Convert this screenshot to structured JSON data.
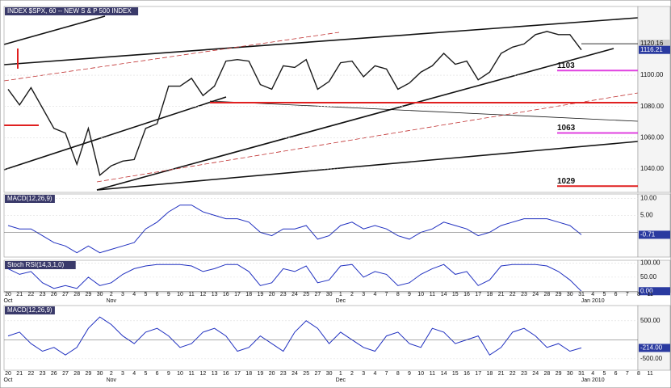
{
  "chart_data": [
    {
      "type": "line",
      "title": "INDEX $SPX, 60 -- NEW S & P 500 INDEX",
      "categories": [
        "20",
        "21",
        "22",
        "23",
        "26",
        "27",
        "28",
        "29",
        "30",
        "2",
        "3",
        "4",
        "5",
        "6",
        "9",
        "10",
        "11",
        "12",
        "13",
        "16",
        "17",
        "18",
        "19",
        "20",
        "23",
        "24",
        "25",
        "27",
        "30",
        "1",
        "2",
        "3",
        "4",
        "7",
        "8",
        "9",
        "10",
        "11",
        "14",
        "15",
        "16",
        "17",
        "18",
        "21",
        "22",
        "23",
        "24",
        "28",
        "29",
        "30",
        "31",
        "4",
        "5",
        "6",
        "7",
        "8",
        "11"
      ],
      "months": [
        {
          "index": 0,
          "label": "Oct"
        },
        {
          "index": 9,
          "label": "Nov"
        },
        {
          "index": 29,
          "label": "Dec"
        },
        {
          "index": 51,
          "label": "Jan 2010"
        }
      ],
      "series": [
        {
          "name": "SPX",
          "color": "#1a1a1a",
          "values": [
            1091,
            1081,
            1092,
            1079,
            1066,
            1063,
            1043,
            1066,
            1036,
            1042,
            1045,
            1046,
            1066,
            1069,
            1093,
            1093,
            1098,
            1087,
            1093,
            1109,
            1110,
            1109,
            1094,
            1091,
            1106,
            1105,
            1110,
            1091,
            1096,
            1108,
            1109,
            1099,
            1106,
            1104,
            1091,
            1095,
            1102,
            1106,
            1114,
            1107,
            1109,
            1097,
            1102,
            1114,
            1118,
            1120,
            1126,
            1128,
            1126,
            1126,
            1116.21,
            null,
            null,
            null,
            null,
            null,
            null
          ],
          "value_label": "1116.21"
        }
      ],
      "levels": [
        {
          "value": 1120.16,
          "label": "1120.16",
          "color": "#333333"
        },
        {
          "value": 1103,
          "label": "1103",
          "color": "#e040e0"
        },
        {
          "value": 1063,
          "label": "1063",
          "color": "#e040e0"
        },
        {
          "value": 1029,
          "label": "1029",
          "color": "#e02020"
        }
      ],
      "ylim": [
        1025,
        1144
      ],
      "yticks": [
        {
          "value": 1100,
          "label": "1100.00"
        },
        {
          "value": 1080,
          "label": "1080.00"
        },
        {
          "value": 1060,
          "label": "1060.00"
        },
        {
          "value": 1040,
          "label": "1040.00"
        }
      ],
      "grid": true
    },
    {
      "type": "line",
      "title": "MACD(12,26,9)",
      "series": [
        {
          "name": "MACD",
          "color": "#2030c0",
          "values": [
            2,
            1,
            1,
            -1,
            -3,
            -4,
            -6,
            -4,
            -6,
            -5,
            -4,
            -3,
            1,
            3,
            6,
            8,
            8,
            6,
            5,
            4,
            4,
            3,
            0,
            -1,
            1,
            1,
            2,
            -2,
            -1,
            2,
            3,
            1,
            2,
            1,
            -1,
            -2,
            0,
            1,
            3,
            2,
            1,
            -1,
            0,
            2,
            3,
            4,
            4,
            4,
            3,
            2,
            -0.71
          ],
          "value_label": "-0.71"
        }
      ],
      "ylim": [
        -7.25,
        11.25
      ],
      "yticks": [
        {
          "value": 10,
          "label": "10.00"
        },
        {
          "value": 5,
          "label": "5.00"
        }
      ],
      "grid": true
    },
    {
      "type": "line",
      "title": "Stoch RSI(14,3,1,0)",
      "series": [
        {
          "name": "StochRSI",
          "color": "#2030c0",
          "values": [
            80,
            60,
            70,
            30,
            10,
            20,
            10,
            50,
            20,
            30,
            60,
            80,
            90,
            95,
            95,
            95,
            90,
            70,
            80,
            95,
            95,
            70,
            20,
            30,
            80,
            70,
            90,
            30,
            40,
            90,
            95,
            50,
            70,
            60,
            20,
            30,
            60,
            80,
            95,
            60,
            70,
            20,
            40,
            90,
            95,
            95,
            95,
            90,
            70,
            40,
            0
          ],
          "value_label": "0.00"
        }
      ],
      "ylim": [
        -5,
        110
      ],
      "yticks": [
        {
          "value": 100,
          "label": "100.00"
        },
        {
          "value": 50,
          "label": "50.00"
        }
      ],
      "grid": true
    },
    {
      "type": "line",
      "title": "MACD(12,26,9)",
      "series": [
        {
          "name": "MACD",
          "color": "#2030c0",
          "values": [
            100,
            200,
            -100,
            -300,
            -200,
            -400,
            -200,
            300,
            600,
            400,
            100,
            -100,
            200,
            300,
            100,
            -200,
            -100,
            200,
            300,
            100,
            -300,
            -200,
            100,
            -100,
            -300,
            200,
            500,
            300,
            -100,
            200,
            0,
            -200,
            -300,
            100,
            200,
            -100,
            -200,
            300,
            200,
            -100,
            0,
            100,
            -400,
            -200,
            200,
            300,
            100,
            -200,
            -100,
            -300,
            -214
          ],
          "value_label": "-214.00"
        }
      ],
      "ylim": [
        -800,
        900
      ],
      "yticks": [
        {
          "value": 500,
          "label": "500.00"
        },
        {
          "value": -500,
          "label": "-500.00"
        }
      ],
      "grid": true
    }
  ]
}
